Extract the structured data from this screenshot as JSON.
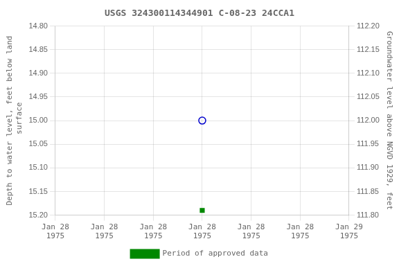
{
  "chart_data": {
    "type": "scatter",
    "title": "USGS 324300114344901 C-08-23 24CCA1",
    "categories": [
      "Jan 28\n1975",
      "Jan 28\n1975",
      "Jan 28\n1975",
      "Jan 28\n1975",
      "Jan 28\n1975",
      "Jan 28\n1975",
      "Jan 29\n1975"
    ],
    "series": [
      {
        "color": "#0000cc",
        "marker": "circle_open",
        "values": [
          null,
          null,
          null,
          15.0,
          null,
          null,
          null
        ]
      },
      {
        "name": "Period of approved data",
        "color": "#008800",
        "marker": "square",
        "values": [
          null,
          null,
          null,
          15.19,
          null,
          null,
          null
        ]
      }
    ],
    "ylabel": "Depth to water level, feet below land\n surface",
    "y2label": "Groundwater level above NGVD 1929, feet",
    "ylim": [
      15.2,
      14.8
    ],
    "yticks": [
      {
        "value": 14.8,
        "label": "14.80"
      },
      14.85,
      {
        "value": 14.9,
        "label": "14.90"
      },
      14.95,
      {
        "value": 15.0,
        "label": "15.00"
      },
      15.05,
      {
        "value": 15.1,
        "label": "15.10"
      },
      15.15,
      {
        "value": 15.2,
        "label": "15.20"
      }
    ],
    "y2lim": [
      111.8,
      112.2
    ],
    "y2ticks": [
      {
        "value": 112.2,
        "label": "112.20"
      },
      112.15,
      {
        "value": 112.1,
        "label": "112.10"
      },
      112.05,
      {
        "value": 112.0,
        "label": "112.00"
      },
      111.95,
      {
        "value": 111.9,
        "label": "111.90"
      },
      111.85,
      {
        "value": 111.8,
        "label": "111.80"
      }
    ],
    "grid": true,
    "legend": "bottom"
  }
}
